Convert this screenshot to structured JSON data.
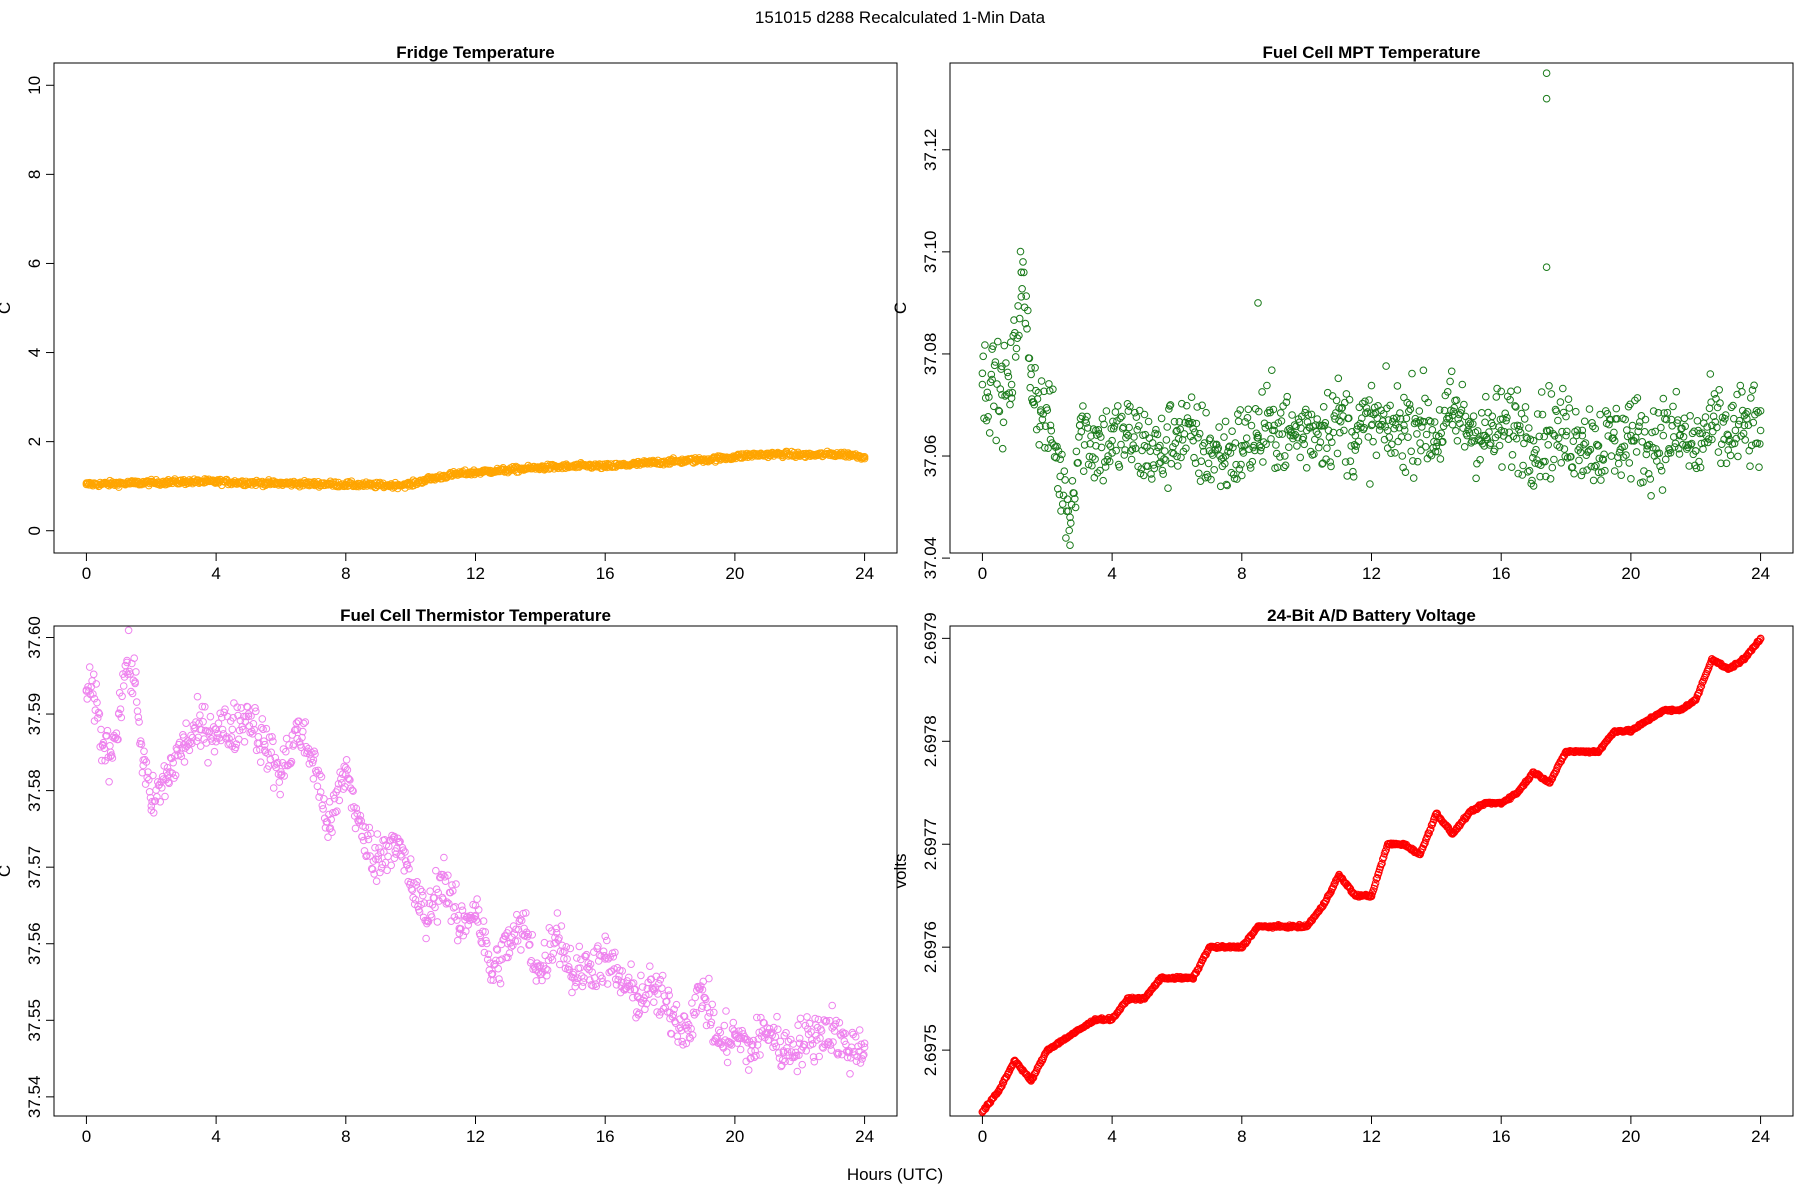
{
  "figure": {
    "suptitle": "151015   d288   Recalculated 1-Min Data",
    "xlabel": "Hours (UTC)"
  },
  "chart_data": [
    {
      "type": "scatter",
      "title": "Fridge Temperature",
      "ylabel": "C",
      "xlim": [
        -1,
        25
      ],
      "ylim": [
        -0.5,
        10.5
      ],
      "xticks": [
        0,
        4,
        8,
        12,
        16,
        20,
        24
      ],
      "yticks": [
        0,
        2,
        4,
        6,
        8,
        10
      ],
      "ytick_labels": [
        "0",
        "2",
        "4",
        "6",
        "8",
        "10"
      ],
      "color": "#FFA500",
      "marker": "open-circle",
      "series": [
        {
          "x": [
            0,
            0.5,
            1,
            1.5,
            2,
            2.5,
            3,
            3.5,
            4,
            4.5,
            5,
            5.5,
            6,
            6.5,
            7,
            7.5,
            8,
            8.5,
            9,
            9.5,
            10,
            10.5,
            11,
            11.5,
            12,
            12.5,
            13,
            13.5,
            14,
            14.5,
            15,
            15.5,
            16,
            16.5,
            17,
            17.5,
            18,
            18.5,
            19,
            19.5,
            20,
            20.5,
            21,
            21.5,
            22,
            22.5,
            23,
            23.5,
            24
          ],
          "y": [
            1.04,
            1.05,
            1.06,
            1.07,
            1.08,
            1.09,
            1.1,
            1.1,
            1.1,
            1.09,
            1.08,
            1.07,
            1.06,
            1.06,
            1.05,
            1.05,
            1.04,
            1.03,
            1.02,
            1.02,
            1.04,
            1.15,
            1.22,
            1.28,
            1.31,
            1.34,
            1.36,
            1.39,
            1.42,
            1.43,
            1.44,
            1.46,
            1.44,
            1.47,
            1.5,
            1.53,
            1.55,
            1.57,
            1.59,
            1.62,
            1.66,
            1.7,
            1.71,
            1.72,
            1.7,
            1.7,
            1.72,
            1.71,
            1.66
          ]
        }
      ]
    },
    {
      "type": "scatter",
      "title": "Fuel Cell MPT Temperature",
      "ylabel": "C",
      "xlim": [
        -1,
        25
      ],
      "ylim": [
        37.041,
        37.137
      ],
      "xticks": [
        0,
        4,
        8,
        12,
        16,
        20,
        24
      ],
      "yticks": [
        37.04,
        37.06,
        37.08,
        37.1,
        37.12
      ],
      "ytick_labels": [
        "37.04",
        "37.06",
        "37.08",
        "37.10",
        "37.12"
      ],
      "color": "#1A7A1A",
      "marker": "open-circle",
      "series": [
        {
          "x": [
            0,
            0.3,
            0.6,
            0.9,
            1.2,
            1.5,
            1.8,
            2.1,
            2.4,
            2.7,
            3,
            3.5,
            4,
            4.5,
            5,
            5.5,
            6,
            6.5,
            7,
            7.5,
            8,
            8.5,
            9,
            9.5,
            10,
            10.5,
            11,
            11.5,
            12,
            12.5,
            13,
            13.5,
            14,
            14.5,
            15,
            15.5,
            16,
            16.5,
            17,
            17.5,
            18,
            18.5,
            19,
            19.5,
            20,
            20.5,
            21,
            21.5,
            22,
            22.5,
            23,
            23.5,
            24
          ],
          "y": [
            37.074,
            37.075,
            37.072,
            37.074,
            37.096,
            37.076,
            37.069,
            37.066,
            37.056,
            37.048,
            37.066,
            37.062,
            37.063,
            37.064,
            37.062,
            37.06,
            37.065,
            37.063,
            37.061,
            37.06,
            37.062,
            37.064,
            37.066,
            37.064,
            37.065,
            37.066,
            37.067,
            37.064,
            37.066,
            37.065,
            37.066,
            37.067,
            37.064,
            37.068,
            37.066,
            37.064,
            37.065,
            37.066,
            37.063,
            37.065,
            37.064,
            37.064,
            37.062,
            37.063,
            37.064,
            37.062,
            37.064,
            37.064,
            37.061,
            37.066,
            37.064,
            37.066,
            37.065
          ],
          "outliers": [
            {
              "x": 1.2,
              "y": 37.096
            },
            {
              "x": 8.5,
              "y": 37.09
            },
            {
              "x": 17.4,
              "y": 37.097
            },
            {
              "x": 17.4,
              "y": 37.13
            },
            {
              "x": 17.4,
              "y": 37.135
            }
          ]
        }
      ]
    },
    {
      "type": "scatter",
      "title": "Fuel Cell Thermistor Temperature",
      "ylabel": "C",
      "xlim": [
        -1,
        25
      ],
      "ylim": [
        37.5375,
        37.6015
      ],
      "xticks": [
        0,
        4,
        8,
        12,
        16,
        20,
        24
      ],
      "yticks": [
        37.54,
        37.55,
        37.56,
        37.57,
        37.58,
        37.59,
        37.6
      ],
      "ytick_labels": [
        "37.54",
        "37.55",
        "37.56",
        "37.57",
        "37.58",
        "37.59",
        "37.60"
      ],
      "color": "#EE82EE",
      "marker": "open-circle",
      "series": [
        {
          "x": [
            0,
            0.25,
            0.5,
            0.75,
            1,
            1.25,
            1.5,
            1.75,
            2,
            2.5,
            3,
            3.5,
            4,
            4.5,
            5,
            5.5,
            6,
            6.5,
            7,
            7.5,
            8,
            8.5,
            9,
            9.5,
            10,
            10.5,
            11,
            11.5,
            12,
            12.5,
            13,
            13.5,
            14,
            14.5,
            15,
            15.5,
            16,
            16.5,
            17,
            17.5,
            18,
            18.5,
            19,
            19.5,
            20,
            20.5,
            21,
            21.5,
            22,
            22.5,
            23,
            23.5,
            24
          ],
          "y": [
            37.593,
            37.592,
            37.586,
            37.585,
            37.59,
            37.597,
            37.594,
            37.584,
            37.578,
            37.582,
            37.586,
            37.588,
            37.588,
            37.588,
            37.59,
            37.586,
            37.582,
            37.588,
            37.584,
            37.575,
            37.583,
            37.574,
            37.571,
            37.574,
            37.568,
            37.563,
            37.569,
            37.562,
            37.565,
            37.556,
            37.56,
            37.562,
            37.556,
            37.562,
            37.556,
            37.557,
            37.558,
            37.555,
            37.553,
            37.554,
            37.551,
            37.549,
            37.554,
            37.547,
            37.548,
            37.546,
            37.549,
            37.546,
            37.547,
            37.548,
            37.549,
            37.546,
            37.547
          ]
        }
      ]
    },
    {
      "type": "scatter",
      "title": "24-Bit A/D Battery Voltage",
      "ylabel": "volts",
      "xlim": [
        -1,
        25
      ],
      "ylim": [
        2.697436,
        2.697912
      ],
      "xticks": [
        0,
        4,
        8,
        12,
        16,
        20,
        24
      ],
      "yticks": [
        2.6975,
        2.6976,
        2.6977,
        2.6978,
        2.6979
      ],
      "ytick_labels": [
        "2.6975",
        "2.6976",
        "2.6977",
        "2.6978",
        "2.6979"
      ],
      "color": "#FF0000",
      "marker": "open-circle",
      "series": [
        {
          "x": [
            0,
            0.5,
            1,
            1.5,
            2,
            2.5,
            3,
            3.5,
            4,
            4.5,
            5,
            5.5,
            6,
            6.5,
            7,
            7.5,
            8,
            8.5,
            9,
            9.5,
            10,
            10.5,
            11,
            11.5,
            12,
            12.5,
            13,
            13.5,
            14,
            14.5,
            15,
            15.5,
            16,
            16.5,
            17,
            17.5,
            18,
            18.5,
            19,
            19.5,
            20,
            20.5,
            21,
            21.5,
            22,
            22.5,
            23,
            23.5,
            24
          ],
          "y": [
            2.69744,
            2.69746,
            2.69749,
            2.69747,
            2.6975,
            2.69751,
            2.69752,
            2.69753,
            2.69753,
            2.69755,
            2.69755,
            2.69757,
            2.69757,
            2.69757,
            2.6976,
            2.6976,
            2.6976,
            2.69762,
            2.69762,
            2.69762,
            2.69762,
            2.69764,
            2.69767,
            2.69765,
            2.69765,
            2.6977,
            2.6977,
            2.69769,
            2.69773,
            2.69771,
            2.69773,
            2.69774,
            2.69774,
            2.69775,
            2.69777,
            2.69776,
            2.69779,
            2.69779,
            2.69779,
            2.69781,
            2.69781,
            2.69782,
            2.69783,
            2.69783,
            2.69784,
            2.69788,
            2.69787,
            2.69788,
            2.6979
          ]
        }
      ]
    }
  ]
}
